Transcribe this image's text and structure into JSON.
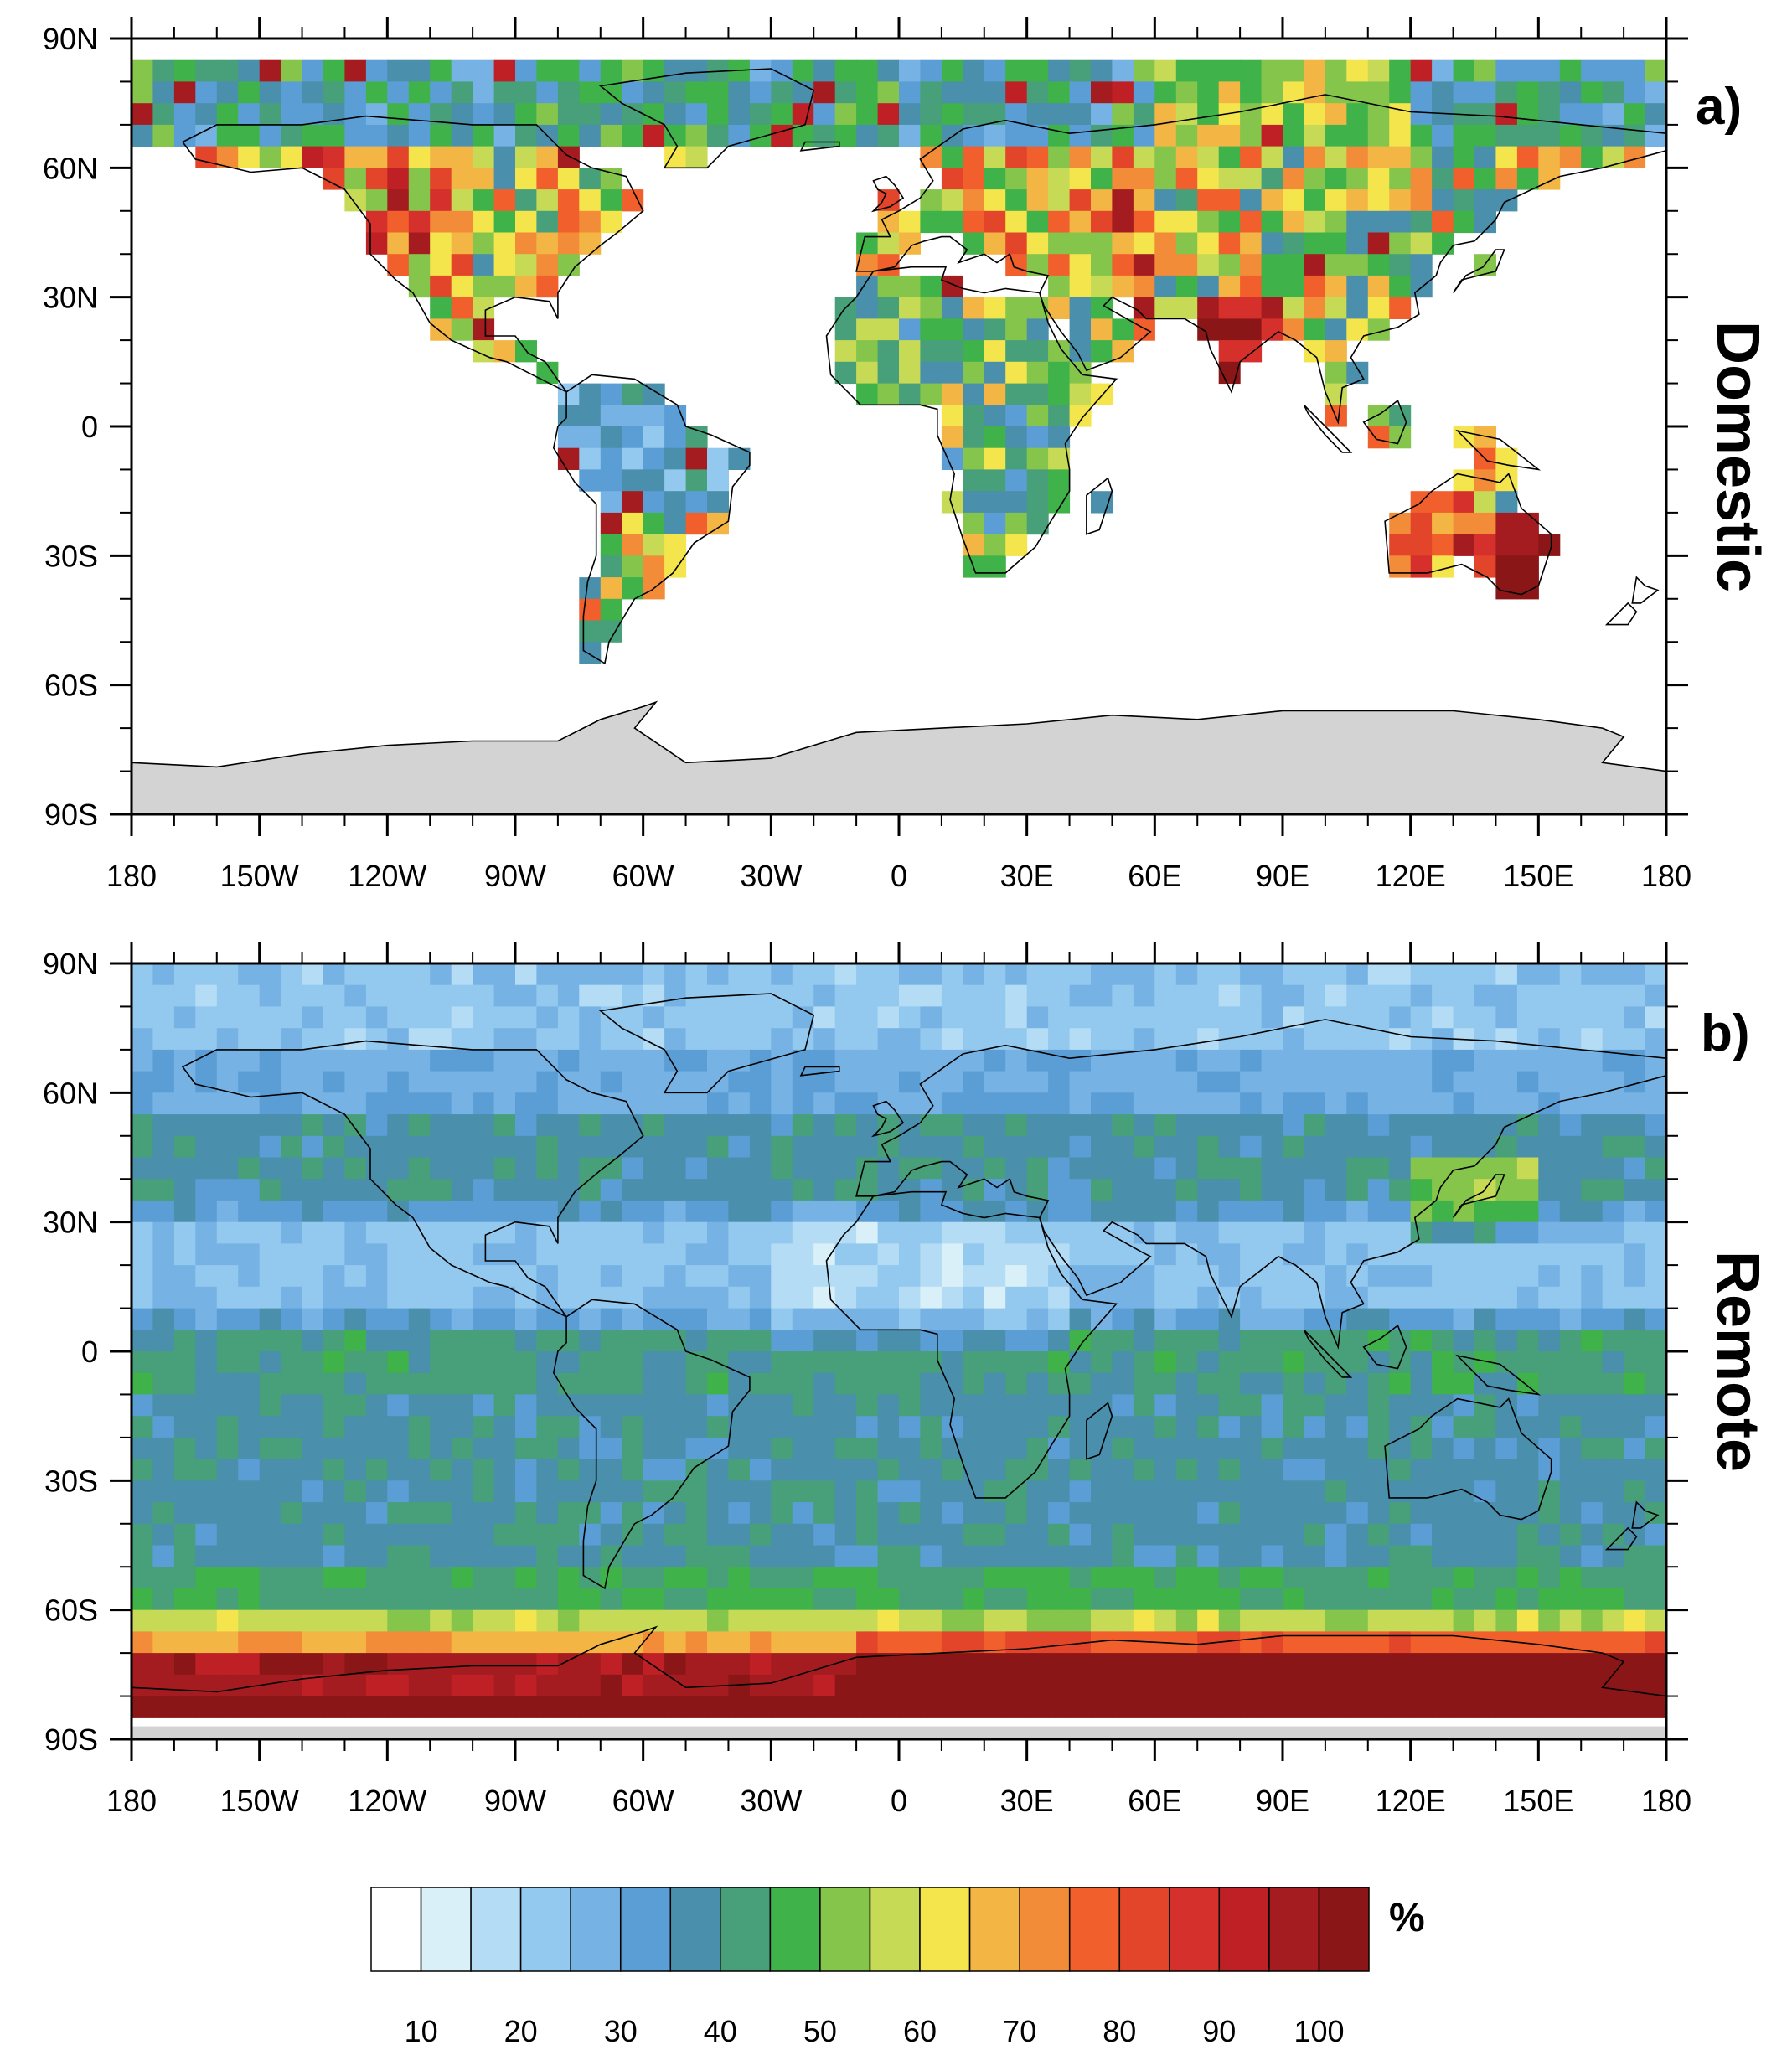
{
  "colors": {
    "land_mask": "#d3d3d3",
    "frame": "#000000",
    "palette": [
      "#ffffff",
      "#daf0f8",
      "#b4dcf5",
      "#93c9ee",
      "#76b3e4",
      "#5b9ed6",
      "#4a8fac",
      "#47a07a",
      "#3fb24a",
      "#86c54b",
      "#c7da56",
      "#f4e54c",
      "#f3b645",
      "#f28c38",
      "#f05f2c",
      "#e2452a",
      "#d5302b",
      "#be2026",
      "#a51c20",
      "#8b1618"
    ]
  },
  "axes": {
    "lat_labels": [
      "90N",
      "60N",
      "30N",
      "0",
      "30S",
      "60S",
      "90S"
    ],
    "lon_labels": [
      "180",
      "150W",
      "120W",
      "90W",
      "60W",
      "30W",
      "0",
      "30E",
      "60E",
      "90E",
      "120E",
      "150E",
      "180"
    ]
  },
  "panels": [
    {
      "letter": "a)",
      "title": "Domestic",
      "pattern": "domestic"
    },
    {
      "letter": "b)",
      "title": "Remote",
      "pattern": "remote"
    }
  ],
  "colorbar": {
    "labels": [
      "10",
      "20",
      "30",
      "40",
      "50",
      "60",
      "70",
      "80",
      "90",
      "100"
    ],
    "unit": "%"
  },
  "chart_data": [
    {
      "type": "heatmap",
      "title": "",
      "panel_label": "a)",
      "side_label": "Domestic",
      "xlabel": "",
      "ylabel": "",
      "xlim": [
        -180,
        180
      ],
      "ylim": [
        -90,
        90
      ],
      "x_ticks": [
        "180",
        "150W",
        "120W",
        "90W",
        "60W",
        "30W",
        "0",
        "30E",
        "60E",
        "90E",
        "120E",
        "150E",
        "180"
      ],
      "y_ticks": [
        "90N",
        "60N",
        "30N",
        "0",
        "30S",
        "60S",
        "90S"
      ],
      "value_range": [
        5,
        100
      ],
      "unit": "%",
      "regions_approx": [
        {
          "region": "Arctic band (70N-88N)",
          "value": 35
        },
        {
          "region": "India",
          "value": 90
        },
        {
          "region": "Eastern Australia",
          "value": 100
        },
        {
          "region": "Western North America",
          "value": 65
        },
        {
          "region": "Amazon",
          "value": 25
        },
        {
          "region": "Africa",
          "value": 40
        },
        {
          "region": "Europe",
          "value": 55
        }
      ]
    },
    {
      "type": "heatmap",
      "title": "",
      "panel_label": "b)",
      "side_label": "Remote",
      "xlabel": "",
      "ylabel": "",
      "xlim": [
        -180,
        180
      ],
      "ylim": [
        -90,
        90
      ],
      "x_ticks": [
        "180",
        "150W",
        "120W",
        "90W",
        "60W",
        "30W",
        "0",
        "30E",
        "60E",
        "90E",
        "120E",
        "150E",
        "180"
      ],
      "y_ticks": [
        "90N",
        "60N",
        "30N",
        "0",
        "30S",
        "60S",
        "90S"
      ],
      "value_range": [
        5,
        100
      ],
      "unit": "%",
      "zonal_mean_approx": [
        {
          "lat": 80,
          "value": 20
        },
        {
          "lat": 60,
          "value": 25
        },
        {
          "lat": 45,
          "value": 33
        },
        {
          "lat": 25,
          "value": 20
        },
        {
          "lat": 0,
          "value": 37
        },
        {
          "lat": -30,
          "value": 33
        },
        {
          "lat": -55,
          "value": 50
        },
        {
          "lat": -65,
          "value": 70
        },
        {
          "lat": -75,
          "value": 95
        },
        {
          "lat": -85,
          "value": 100
        }
      ]
    }
  ]
}
